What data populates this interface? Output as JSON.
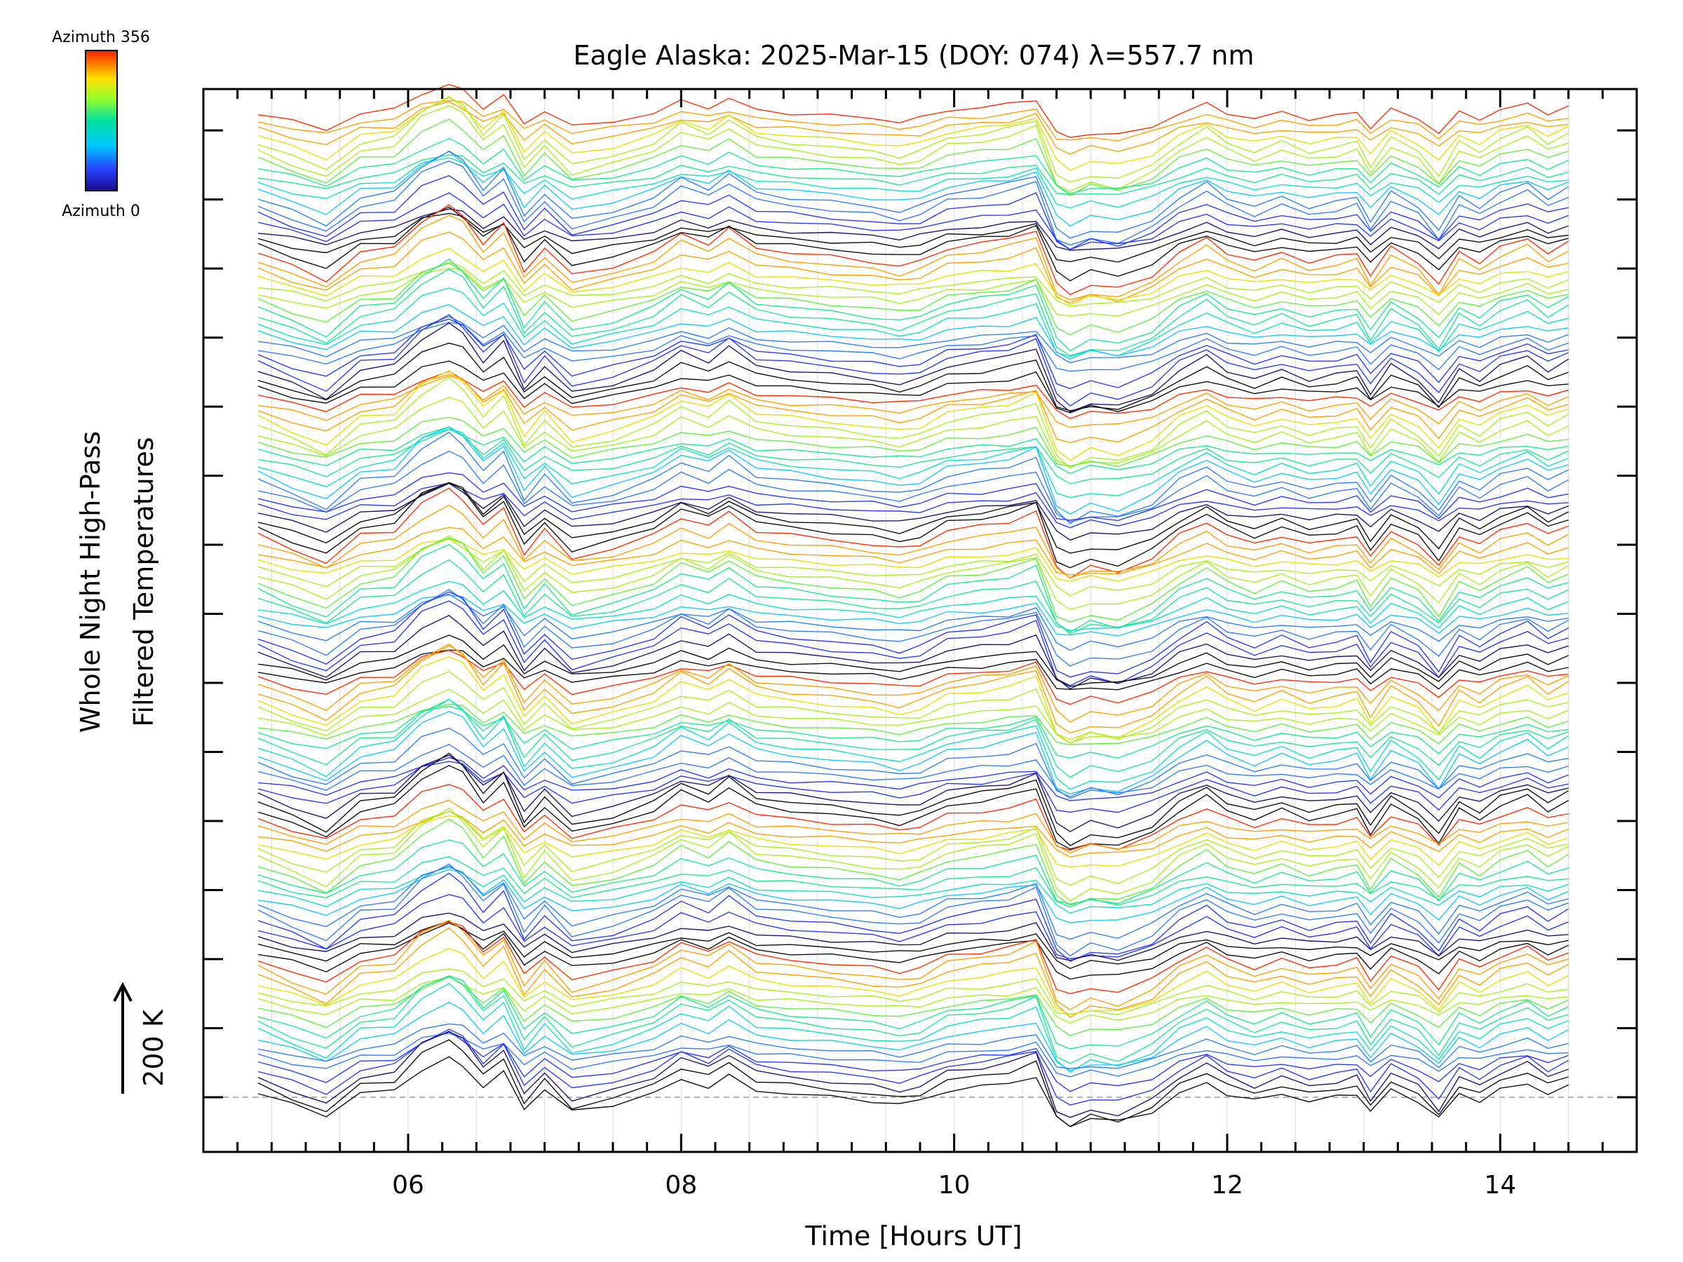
{
  "chart_data": {
    "type": "line",
    "title": "Eagle Alaska: 2025-Mar-15 (DOY: 074) λ=557.7 nm",
    "xlabel": "Time [Hours UT]",
    "ylabel_line1": "Whole Night High-Pass",
    "ylabel_line2": "Filtered Temperatures",
    "scale_bar_label": "200 K",
    "xlim": [
      4.5,
      15.0
    ],
    "x_ticks": [
      6,
      8,
      10,
      12,
      14
    ],
    "x_tick_labels": [
      "06",
      "08",
      "10",
      "12",
      "14"
    ],
    "x_minor_step": 0.25,
    "y_tick_count": 15,
    "colorbar": {
      "top_label": "Azimuth 356",
      "bottom_label": "Azimuth 0",
      "min": 0,
      "max": 356,
      "colormap": "rainbow"
    },
    "time_samples": [
      4.9,
      5.15,
      5.4,
      5.65,
      5.9,
      6.1,
      6.3,
      6.4,
      6.55,
      6.7,
      6.85,
      7.0,
      7.2,
      7.5,
      7.8,
      8.0,
      8.2,
      8.35,
      8.55,
      8.8,
      9.1,
      9.4,
      9.6,
      9.75,
      9.95,
      10.2,
      10.4,
      10.6,
      10.75,
      10.85,
      11.0,
      11.2,
      11.45,
      11.65,
      11.85,
      12.0,
      12.2,
      12.4,
      12.6,
      12.8,
      12.95,
      13.05,
      13.2,
      13.4,
      13.55,
      13.7,
      13.85,
      14.0,
      14.2,
      14.35,
      14.5
    ],
    "base_profile_K": [
      10,
      -20,
      -50,
      10,
      20,
      80,
      110,
      90,
      30,
      70,
      -30,
      20,
      -40,
      -20,
      10,
      50,
      30,
      60,
      20,
      10,
      0,
      -10,
      -20,
      -10,
      20,
      30,
      40,
      60,
      -60,
      -80,
      -60,
      -70,
      -40,
      10,
      40,
      10,
      -10,
      10,
      -10,
      0,
      10,
      -40,
      20,
      -10,
      -60,
      10,
      -10,
      20,
      40,
      10,
      30
    ],
    "groups": 7,
    "azimuth_step_deg": 20,
    "series_count": 126
  }
}
